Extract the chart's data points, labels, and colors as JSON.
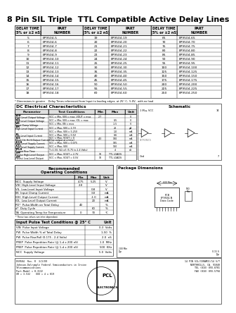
{
  "title": "8 Pin SIL Triple  TTL Compatible Active Delay Lines",
  "part_table_headers": [
    "DELAY TIME\n(5% or ±2 nS)",
    "PART\nNUMBER",
    "DELAY TIME\n(5% or ±2 nS)",
    "PART\nNUMBER",
    "DELAY TIME\n(5% or ±2 nS)",
    "PART\nNUMBER"
  ],
  "part_table_data": [
    [
      "5",
      "EP9504-5",
      "19",
      "EP9504-19",
      "65",
      "EP9504-65"
    ],
    [
      "6",
      "EP9504-6",
      "20",
      "EP9504-20",
      "70",
      "EP9504-70"
    ],
    [
      "7",
      "EP9504-7",
      "21",
      "EP9504-21",
      "75",
      "EP9504-75"
    ],
    [
      "8",
      "EP9504-8",
      "22",
      "EP9504-22",
      "80",
      "EP9504-80"
    ],
    [
      "9",
      "EP9504-9",
      "23",
      "EP9504-23",
      "85",
      "EP9504-85"
    ],
    [
      "10",
      "EP9504-10",
      "24",
      "EP9504-24",
      "90",
      "EP9504-90"
    ],
    [
      "11",
      "EP9504-11",
      "25",
      "EP9504-25",
      "95",
      "EP9504-95"
    ],
    [
      "12",
      "EP9504-12",
      "30",
      "EP9504-30",
      "100",
      "EP9504-100"
    ],
    [
      "13",
      "EP9504-13",
      "35",
      "EP9504-35",
      "125",
      "EP9504-125"
    ],
    [
      "14",
      "EP9504-14",
      "40",
      "EP9504-40",
      "150",
      "EP9504-150"
    ],
    [
      "15",
      "EP9504-15",
      "45",
      "EP9504-45",
      "175",
      "EP9504-175"
    ],
    [
      "16",
      "EP9504-16",
      "50",
      "EP9504-50",
      "200",
      "EP9504-200"
    ],
    [
      "17",
      "EP9504-17",
      "55",
      "EP9504-55",
      "225",
      "EP9504-225"
    ],
    [
      "18",
      "EP9504-18",
      "60",
      "EP9504-60",
      "250",
      "EP9504-250"
    ]
  ],
  "footnote": "* Dimensions in greater    Delay Times referenced from Input to leading edges  at 25° C,  5.0V,  with no load",
  "dc_title": "DC Electrical Characteristics",
  "dc_headers": [
    "Parameter",
    "Test Conditions",
    "Min",
    "Max",
    "Unit"
  ],
  "dc_rows": [
    [
      "VOH\nHigh-Level Output Voltage",
      "VCC = Min, VIN = max, VOUT = max",
      "2.7",
      "",
      "V"
    ],
    [
      "VOL\nLow-Level Output Voltage",
      "VCC = Min, VIN = max, IOL = max",
      "",
      "0.5",
      "V"
    ],
    [
      "VIK\nInput Clamp Voltage",
      "VCC = Min, IIN = max",
      "",
      "-1.5",
      "V"
    ],
    [
      "IIH\nHigh-Level Input Current",
      "VCC = Max, VIN = 2.7V",
      "",
      "20",
      "μA"
    ],
    [
      "",
      "VCC = Max, VIN = 5.25V",
      "",
      "1.0",
      "mA"
    ],
    [
      "IIL\nLow-Level Input Current",
      "VCC = Max, VIN = 0.5V",
      "",
      "0.6",
      "mA"
    ],
    [
      "IOS\nShort Ckt Hi-Hi Output Curr err",
      "VCC = Max, VOUT = 0\n(One output at a time)",
      "-40",
      "100",
      "mA"
    ],
    [
      "ICCH\nHigh-Level Supply Current",
      "VCC = Max, VIN = 0.075",
      "",
      "105",
      "mA"
    ],
    [
      "ICCL\nLow-Level Supply Current",
      "VCC = Max, VIN",
      "",
      "160",
      "mA"
    ],
    [
      "TPLH\nOutput Rise Time",
      "T=1.5V, 5Ω ±5 (5.75 to 2.4 Volts)",
      "",
      "4",
      "nS"
    ],
    [
      "NM\nFanout High-Level Output",
      "VCC = Max, VOUT = 2.7V",
      "10",
      "TTL LOADS",
      ""
    ],
    [
      "NM\nFanout Low-Level Output",
      "VCC = Max, VOUT = 0.5V",
      "10",
      "TTL LOADS",
      ""
    ]
  ],
  "schematic_title": "Schematic",
  "rec_title": "Recommended\nOperating Conditions",
  "rec_note": "* These two values are inter-dependant",
  "rec_headers": [
    "",
    "Min",
    "Max",
    "Unit"
  ],
  "rec_rows": [
    [
      "NCC  Supply Voltage",
      "4.75",
      "5.25",
      "V"
    ],
    [
      "VIH  High-Level Input Voltage",
      "2.0",
      "",
      "V"
    ],
    [
      "VIL  Low-Level Input Voltage",
      "",
      "0.8",
      "V"
    ],
    [
      "IIK  Input Clamp Current",
      "",
      "-50",
      "mA"
    ],
    [
      "IOH  High-Level Output Current",
      "",
      "-1.0",
      "mA"
    ],
    [
      "IOL  Low-Level Output Current",
      "",
      "20",
      "mA"
    ],
    [
      "PD*  Pulse-Width on Total Delay",
      "40",
      "",
      "%"
    ],
    [
      "d*  Duty Cycle",
      "",
      "60",
      "%"
    ],
    [
      "TA  Operating Temp for Temperature",
      "0",
      "70",
      "°C"
    ]
  ],
  "pulse_title": "Input Pulse Test Conditions @ 25° C",
  "pulse_headers": [
    "",
    "Unit"
  ],
  "pulse_rows": [
    [
      "VIN  Pulse Input Voltage",
      "0-3  Volts"
    ],
    [
      "PW  Pulse Width % of Total Delay",
      "1-50  %"
    ],
    [
      "PW  Pulse Rise/Fall (0.175 - 2-4 Volts)",
      "2.0  nS"
    ],
    [
      "PREP  Pulse Repetition Rate (@ 1-d x 200 nS)",
      "1.0  MHz"
    ],
    [
      "PREP  Pulse Repetition Rate (@ 1-d x 200 nS)",
      "500  KHz"
    ],
    [
      "NCC  Supply Voltage",
      "5.0  Volts"
    ]
  ],
  "package_title": "Package Dimensions",
  "footer_left": "DS9504  Rev. R  3/2/89\nJohnson-Dalrymple Federal Semiconductors in Irvine\nTelecommunications\nPart-Model = H-3132\nXR = 3.532    XXX = 4 x 019",
  "footer_right": "14 PIN SIL/CERAMIC/14 S/T\nNORTHHILLS, CA. 91040\nTEL (818) 893-0781\nFAX (818) 893-5794"
}
